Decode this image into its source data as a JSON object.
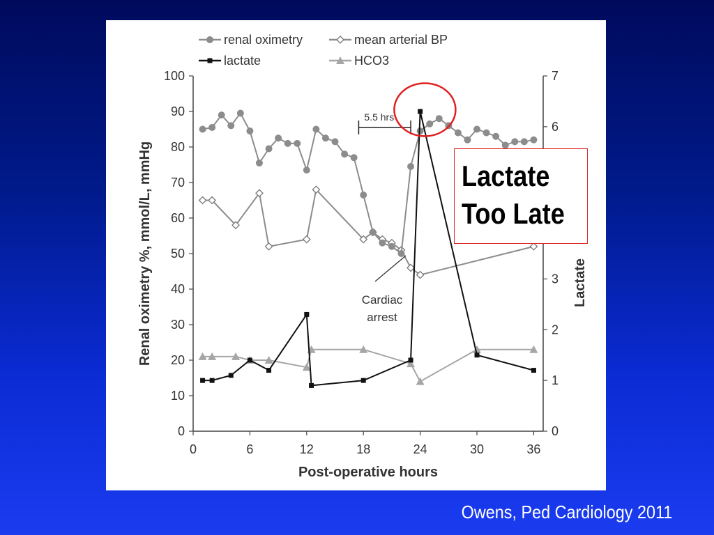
{
  "chart_data": {
    "type": "line",
    "xlabel": "Post-operative hours",
    "ylabel_left": "Renal oximetry %, mmol/L, mmHg",
    "ylabel_right": "Lactate",
    "xlim": [
      0,
      37
    ],
    "ylim_left": [
      0,
      100
    ],
    "ylim_right": [
      0,
      7
    ],
    "x_ticks": [
      0,
      6,
      12,
      18,
      24,
      30,
      36
    ],
    "y_ticks_left": [
      0,
      10,
      20,
      30,
      40,
      50,
      60,
      70,
      80,
      90,
      100
    ],
    "y_ticks_right": [
      0,
      1,
      2,
      3,
      4,
      5,
      6,
      7
    ],
    "legend_position": "top",
    "series": [
      {
        "name": "renal oximetry",
        "axis": "left",
        "marker": "circle",
        "color": "#8c8c8c",
        "x": [
          1,
          2,
          3,
          4,
          5,
          6,
          7,
          8,
          9,
          10,
          11,
          12,
          13,
          14,
          15,
          16,
          17,
          18,
          19,
          20,
          21,
          22,
          23,
          24,
          25,
          26,
          27,
          28,
          29,
          30,
          31,
          32,
          33,
          34,
          35,
          36
        ],
        "y": [
          85,
          85.5,
          89,
          86,
          89.5,
          84.5,
          75.5,
          79.5,
          82.5,
          81,
          81,
          73.5,
          85,
          82.5,
          81.5,
          78,
          77,
          66.5,
          56,
          53,
          52,
          50,
          74.5,
          84.5,
          86.5,
          88,
          86,
          84,
          82,
          85,
          84,
          83,
          80.5,
          81.5,
          81.5,
          82
        ]
      },
      {
        "name": "mean arterial BP",
        "axis": "left",
        "marker": "diamond",
        "color": "#8c8c8c",
        "x": [
          1,
          2,
          4.5,
          7,
          8,
          12,
          13,
          18,
          19,
          20,
          21,
          22,
          23,
          24,
          36
        ],
        "y": [
          65,
          65,
          58,
          67,
          52,
          54,
          68,
          54,
          56,
          54,
          53,
          51,
          46,
          44,
          52
        ]
      },
      {
        "name": "lactate",
        "axis": "right",
        "marker": "square",
        "color": "#111111",
        "x": [
          1,
          2,
          4,
          6,
          8,
          12,
          12.5,
          18,
          23,
          24,
          30,
          36
        ],
        "y": [
          1.0,
          1.0,
          1.1,
          1.4,
          1.2,
          2.3,
          0.9,
          1.0,
          1.4,
          6.3,
          1.5,
          1.2
        ]
      },
      {
        "name": "HCO3",
        "axis": "left",
        "marker": "triangle",
        "color": "#a6a6a6",
        "x": [
          1,
          2,
          4.5,
          6,
          8,
          12,
          12.5,
          18,
          23,
          24,
          30,
          36
        ],
        "y": [
          21,
          21,
          21,
          20,
          20,
          18,
          23,
          23,
          19,
          14,
          23,
          23
        ]
      }
    ],
    "annotations": {
      "interval_label": "5.5 hrs",
      "event_label_line1": "Cardiac",
      "event_label_line2": "arrest"
    }
  },
  "callout": {
    "line1": "Lactate",
    "line2": "Too Late"
  },
  "citation": "Owens, Ped Cardiology 2011"
}
